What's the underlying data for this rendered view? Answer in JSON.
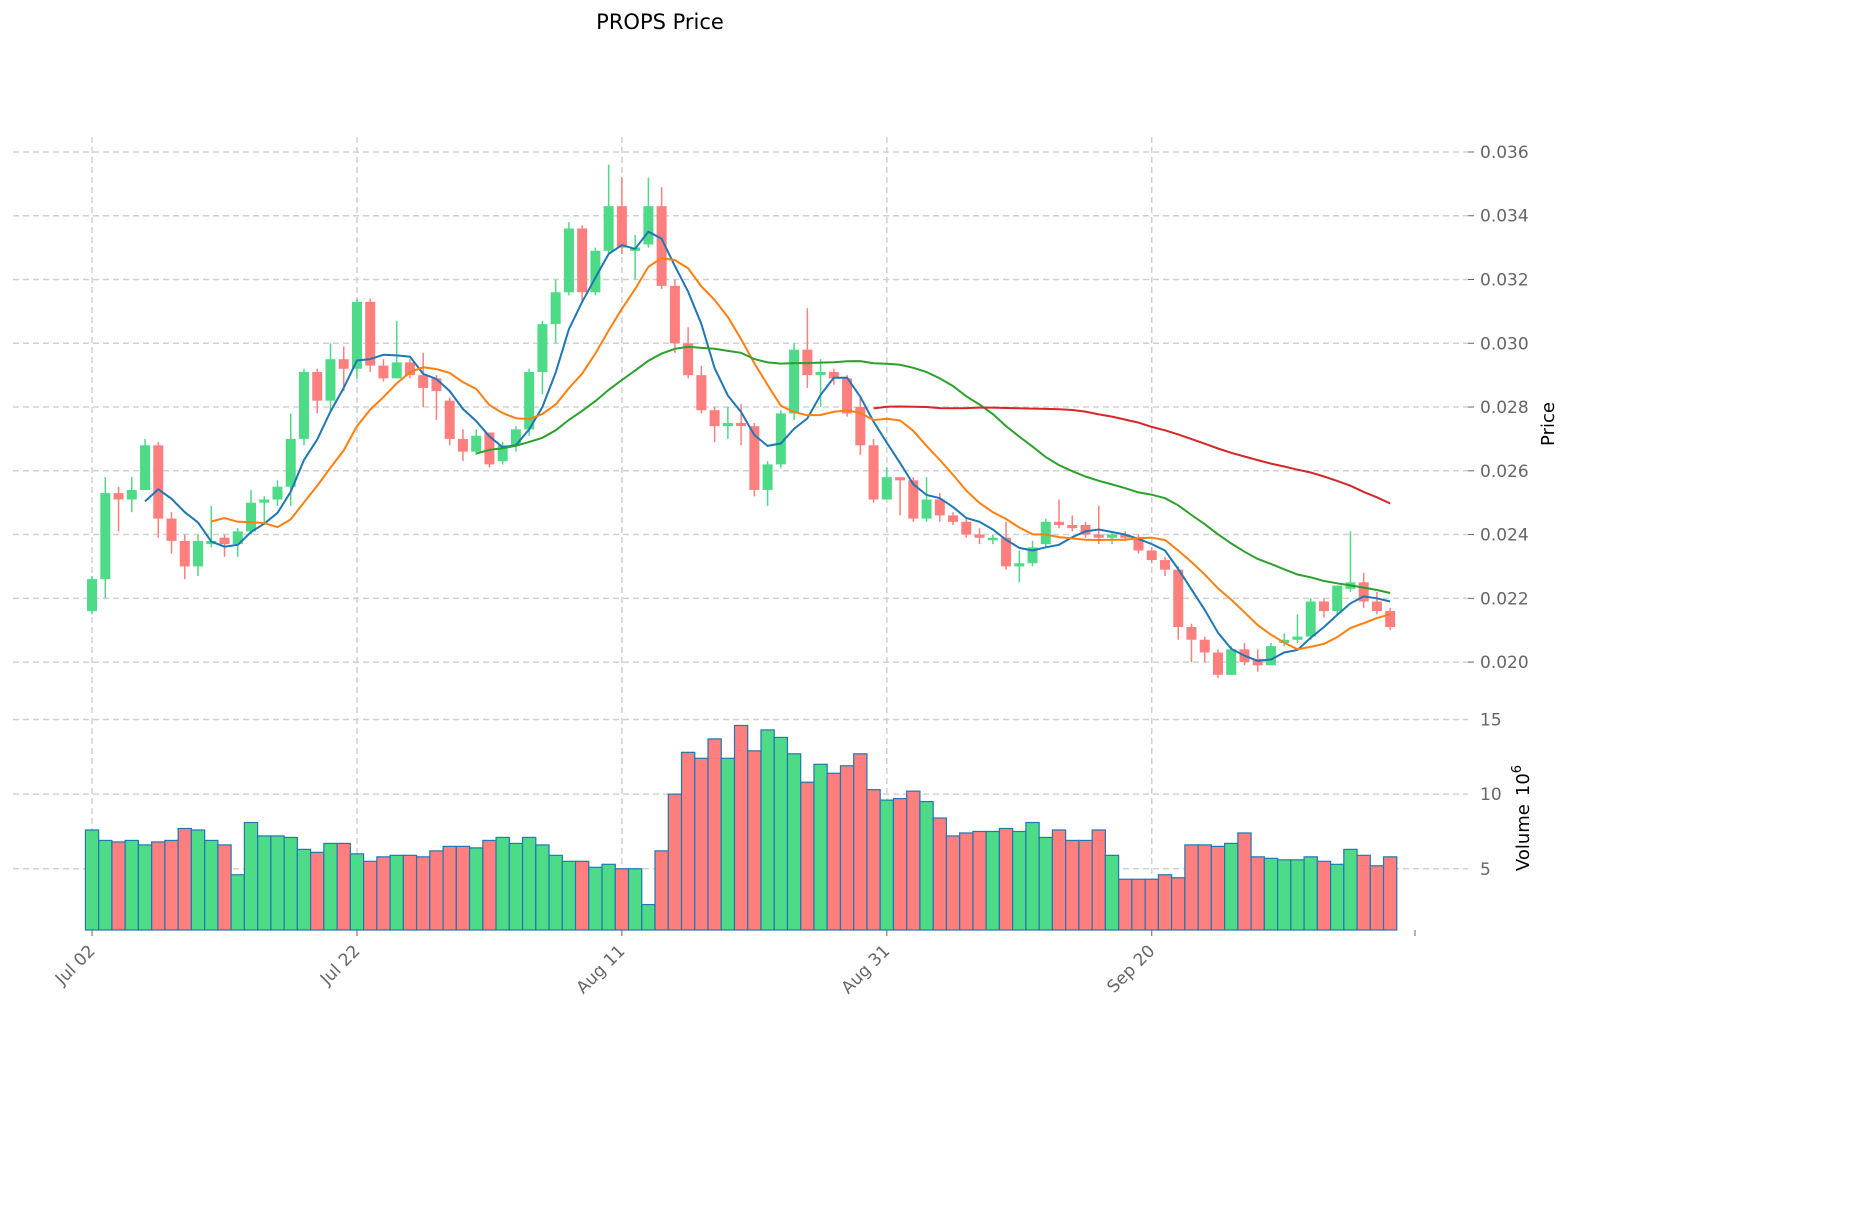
{
  "chart_data": {
    "type": "candlestick",
    "title": "PROPS Price",
    "ylabel_price": "Price",
    "ylabel_volume": "Volume",
    "volume_unit_exponent": "6",
    "xtick_labels": [
      "Jul 02",
      "Jul 22",
      "Aug 11",
      "Aug 31",
      "Sep 20"
    ],
    "xtick_index": [
      0,
      20,
      40,
      60,
      80
    ],
    "price_ticks": [
      "0.020",
      "0.022",
      "0.024",
      "0.026",
      "0.028",
      "0.030",
      "0.032",
      "0.034",
      "0.036"
    ],
    "price_ylim": [
      0.01834,
      0.03647
    ],
    "volume_ticks": [
      "5",
      "10",
      "15"
    ],
    "volume_ylim": [
      0.9,
      15.1
    ],
    "xlim": [
      -1.06,
      100.1
    ],
    "moving_averages": [
      {
        "period": 5,
        "color": "#1f77b4"
      },
      {
        "period": 10,
        "color": "#ff7f0e"
      },
      {
        "period": 30,
        "color": "#2ca02c"
      },
      {
        "period": 60,
        "color": "#d62728"
      }
    ],
    "colors": {
      "up": "#4ddb87",
      "down": "#ff7f7f",
      "volume_edge": "#1f77b4"
    },
    "ohlc": [
      [
        0.0216,
        0.0227,
        0.0215,
        0.0226
      ],
      [
        0.0226,
        0.0258,
        0.022,
        0.0253
      ],
      [
        0.0253,
        0.0255,
        0.0241,
        0.0251
      ],
      [
        0.0251,
        0.0258,
        0.0247,
        0.0254
      ],
      [
        0.0254,
        0.027,
        0.0254,
        0.0268
      ],
      [
        0.0268,
        0.0269,
        0.0239,
        0.0245
      ],
      [
        0.0245,
        0.0247,
        0.0234,
        0.0238
      ],
      [
        0.0238,
        0.024,
        0.0226,
        0.023
      ],
      [
        0.023,
        0.024,
        0.0227,
        0.0238
      ],
      [
        0.0237,
        0.0249,
        0.0236,
        0.0238
      ],
      [
        0.0239,
        0.024,
        0.0233,
        0.0237
      ],
      [
        0.0237,
        0.0242,
        0.0233,
        0.0241
      ],
      [
        0.0241,
        0.0254,
        0.024,
        0.025
      ],
      [
        0.025,
        0.0252,
        0.0243,
        0.0251
      ],
      [
        0.0251,
        0.0257,
        0.0249,
        0.0255
      ],
      [
        0.0255,
        0.0278,
        0.0249,
        0.027
      ],
      [
        0.027,
        0.0292,
        0.0268,
        0.0291
      ],
      [
        0.0291,
        0.0292,
        0.0278,
        0.0282
      ],
      [
        0.0282,
        0.03,
        0.0279,
        0.0295
      ],
      [
        0.0295,
        0.0299,
        0.0285,
        0.0292
      ],
      [
        0.0292,
        0.0314,
        0.0289,
        0.0313
      ],
      [
        0.0313,
        0.0314,
        0.0291,
        0.0293
      ],
      [
        0.0293,
        0.0295,
        0.0288,
        0.0289
      ],
      [
        0.0289,
        0.0307,
        0.0289,
        0.0294
      ],
      [
        0.0294,
        0.0295,
        0.0289,
        0.029
      ],
      [
        0.029,
        0.0297,
        0.028,
        0.0286
      ],
      [
        0.0289,
        0.029,
        0.0276,
        0.0285
      ],
      [
        0.0282,
        0.0283,
        0.0268,
        0.027
      ],
      [
        0.027,
        0.0273,
        0.0263,
        0.0266
      ],
      [
        0.0266,
        0.0273,
        0.0265,
        0.0271
      ],
      [
        0.0272,
        0.0272,
        0.0261,
        0.0262
      ],
      [
        0.0263,
        0.0269,
        0.0262,
        0.0268
      ],
      [
        0.0268,
        0.0274,
        0.0266,
        0.0273
      ],
      [
        0.0273,
        0.0292,
        0.0271,
        0.0291
      ],
      [
        0.0291,
        0.0307,
        0.0284,
        0.0306
      ],
      [
        0.0306,
        0.032,
        0.03,
        0.0316
      ],
      [
        0.0316,
        0.0338,
        0.0315,
        0.0336
      ],
      [
        0.0336,
        0.0337,
        0.0313,
        0.0316
      ],
      [
        0.0316,
        0.033,
        0.0315,
        0.0329
      ],
      [
        0.0329,
        0.0356,
        0.0328,
        0.0343
      ],
      [
        0.0343,
        0.0352,
        0.0328,
        0.033
      ],
      [
        0.0329,
        0.0334,
        0.032,
        0.033
      ],
      [
        0.0331,
        0.0352,
        0.033,
        0.0343
      ],
      [
        0.0343,
        0.0349,
        0.0317,
        0.0318
      ],
      [
        0.0318,
        0.032,
        0.0297,
        0.03
      ],
      [
        0.03,
        0.0305,
        0.0289,
        0.029
      ],
      [
        0.029,
        0.0293,
        0.0278,
        0.0279
      ],
      [
        0.0279,
        0.028,
        0.0269,
        0.0274
      ],
      [
        0.0274,
        0.028,
        0.027,
        0.0275
      ],
      [
        0.0275,
        0.0281,
        0.0268,
        0.0274
      ],
      [
        0.0274,
        0.0275,
        0.0252,
        0.0254
      ],
      [
        0.0254,
        0.0263,
        0.0249,
        0.0262
      ],
      [
        0.0262,
        0.0279,
        0.0261,
        0.0278
      ],
      [
        0.0278,
        0.03,
        0.0276,
        0.0298
      ],
      [
        0.0298,
        0.0311,
        0.0286,
        0.029
      ],
      [
        0.029,
        0.0295,
        0.028,
        0.0291
      ],
      [
        0.0291,
        0.0292,
        0.0287,
        0.0289
      ],
      [
        0.0289,
        0.029,
        0.0277,
        0.0278
      ],
      [
        0.028,
        0.0283,
        0.0265,
        0.0268
      ],
      [
        0.0268,
        0.027,
        0.025,
        0.0251
      ],
      [
        0.0251,
        0.0261,
        0.0251,
        0.0258
      ],
      [
        0.0258,
        0.0258,
        0.0246,
        0.0257
      ],
      [
        0.0257,
        0.0258,
        0.0244,
        0.0245
      ],
      [
        0.0245,
        0.0258,
        0.0244,
        0.0251
      ],
      [
        0.0251,
        0.0253,
        0.0244,
        0.0246
      ],
      [
        0.0246,
        0.0247,
        0.0243,
        0.0244
      ],
      [
        0.0244,
        0.0245,
        0.0239,
        0.024
      ],
      [
        0.024,
        0.0242,
        0.0237,
        0.0239
      ],
      [
        0.0239,
        0.024,
        0.0237,
        0.0239
      ],
      [
        0.0239,
        0.0244,
        0.0229,
        0.023
      ],
      [
        0.023,
        0.0235,
        0.0225,
        0.0231
      ],
      [
        0.0231,
        0.0238,
        0.023,
        0.0236
      ],
      [
        0.0237,
        0.0245,
        0.0236,
        0.0244
      ],
      [
        0.0244,
        0.0251,
        0.0242,
        0.0243
      ],
      [
        0.0243,
        0.0246,
        0.0241,
        0.0242
      ],
      [
        0.0243,
        0.0244,
        0.0239,
        0.024
      ],
      [
        0.024,
        0.0249,
        0.0237,
        0.0239
      ],
      [
        0.0239,
        0.0241,
        0.0237,
        0.024
      ],
      [
        0.024,
        0.0241,
        0.0238,
        0.0239
      ],
      [
        0.0239,
        0.024,
        0.0234,
        0.0235
      ],
      [
        0.0235,
        0.0236,
        0.0231,
        0.0232
      ],
      [
        0.0232,
        0.0233,
        0.0227,
        0.0229
      ],
      [
        0.0229,
        0.023,
        0.0207,
        0.0211
      ],
      [
        0.0211,
        0.0212,
        0.02,
        0.0207
      ],
      [
        0.0207,
        0.0208,
        0.02,
        0.0203
      ],
      [
        0.0203,
        0.0204,
        0.0195,
        0.0196
      ],
      [
        0.0196,
        0.0205,
        0.0196,
        0.0204
      ],
      [
        0.0204,
        0.0206,
        0.0199,
        0.02
      ],
      [
        0.0201,
        0.0204,
        0.0197,
        0.0199
      ],
      [
        0.0199,
        0.0206,
        0.0199,
        0.0205
      ],
      [
        0.0206,
        0.0209,
        0.0205,
        0.0207
      ],
      [
        0.0207,
        0.0215,
        0.0206,
        0.0208
      ],
      [
        0.0208,
        0.022,
        0.0207,
        0.0219
      ],
      [
        0.0219,
        0.022,
        0.0214,
        0.0216
      ],
      [
        0.0216,
        0.0224,
        0.0215,
        0.0224
      ],
      [
        0.0223,
        0.0241,
        0.0222,
        0.0225
      ],
      [
        0.0225,
        0.0228,
        0.0217,
        0.0219
      ],
      [
        0.0219,
        0.0222,
        0.0215,
        0.0216
      ],
      [
        0.0216,
        0.0217,
        0.021,
        0.0211
      ]
    ],
    "volume": [
      7.6,
      6.9,
      6.8,
      6.9,
      6.6,
      6.8,
      6.9,
      7.7,
      7.6,
      6.9,
      6.6,
      4.6,
      8.1,
      7.2,
      7.2,
      7.1,
      6.3,
      6.1,
      6.7,
      6.7,
      6.0,
      5.5,
      5.8,
      5.9,
      5.9,
      5.8,
      6.2,
      6.5,
      6.5,
      6.4,
      6.9,
      7.1,
      6.7,
      7.1,
      6.6,
      5.9,
      5.5,
      5.5,
      5.1,
      5.3,
      5.0,
      5.0,
      2.6,
      6.2,
      10.0,
      12.8,
      12.4,
      13.7,
      12.4,
      14.6,
      12.9,
      14.3,
      13.8,
      12.7,
      10.8,
      12.0,
      11.4,
      11.9,
      12.7,
      10.3,
      9.6,
      9.7,
      10.2,
      9.5,
      8.4,
      7.2,
      7.4,
      7.5,
      7.5,
      7.7,
      7.5,
      8.1,
      7.1,
      7.6,
      6.9,
      6.9,
      7.6,
      5.9,
      4.3,
      4.3,
      4.3,
      4.6,
      4.4,
      6.6,
      6.6,
      6.5,
      6.7,
      7.4,
      5.8,
      5.7,
      5.6,
      5.6,
      5.8,
      5.5,
      5.3,
      6.3,
      5.9,
      5.2,
      5.8
    ]
  }
}
